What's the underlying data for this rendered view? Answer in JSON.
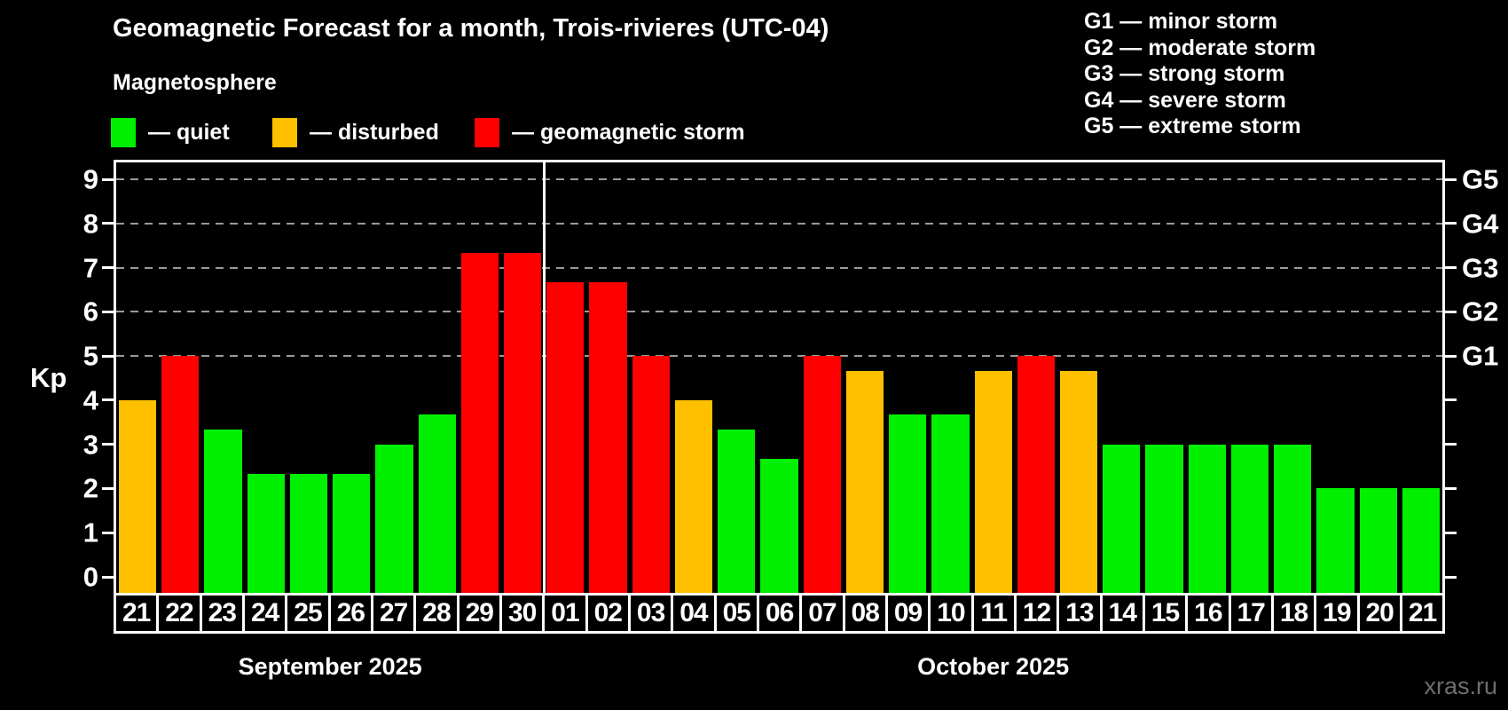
{
  "header": {
    "title": "Geomagnetic Forecast for a month, Trois-rivieres (UTC-04)",
    "subtitle": "Magnetosphere"
  },
  "legend": {
    "items": [
      {
        "key": "quiet",
        "label": "— quiet"
      },
      {
        "key": "disturbed",
        "label": "— disturbed"
      },
      {
        "key": "storm",
        "label": "— geomagnetic storm"
      }
    ]
  },
  "g_legend": {
    "lines": [
      "G1 — minor storm",
      "G2 — moderate storm",
      "G3 — strong storm",
      "G4 — severe storm",
      "G5 — extreme storm"
    ]
  },
  "chart_data": {
    "type": "bar",
    "title": "Geomagnetic Forecast for a month, Trois-rivieres (UTC-04)",
    "ylabel": "Kp",
    "ylim": [
      0,
      9.4
    ],
    "yticks": [
      0,
      1,
      2,
      3,
      4,
      5,
      6,
      7,
      8,
      9
    ],
    "grid": "dashed horizontal at storm levels only",
    "legend_position": "top-left",
    "colors": {
      "quiet": "#00f000",
      "disturbed": "#ffc000",
      "storm": "#ff0000"
    },
    "grid_color": "#9a9a9a",
    "grid_levels": [
      {
        "kp": 5,
        "label": "G1"
      },
      {
        "kp": 6,
        "label": "G2"
      },
      {
        "kp": 7,
        "label": "G3"
      },
      {
        "kp": 8,
        "label": "G4"
      },
      {
        "kp": 9,
        "label": "G5"
      }
    ],
    "months": [
      {
        "label": "September 2025",
        "days": 10
      },
      {
        "label": "October 2025",
        "days": 21
      }
    ],
    "bars": [
      {
        "day": "21",
        "kp": 4.0,
        "status": "disturbed"
      },
      {
        "day": "22",
        "kp": 5.0,
        "status": "storm"
      },
      {
        "day": "23",
        "kp": 3.33,
        "status": "quiet"
      },
      {
        "day": "24",
        "kp": 2.33,
        "status": "quiet"
      },
      {
        "day": "25",
        "kp": 2.33,
        "status": "quiet"
      },
      {
        "day": "26",
        "kp": 2.33,
        "status": "quiet"
      },
      {
        "day": "27",
        "kp": 3.0,
        "status": "quiet"
      },
      {
        "day": "28",
        "kp": 3.67,
        "status": "quiet"
      },
      {
        "day": "29",
        "kp": 7.33,
        "status": "storm"
      },
      {
        "day": "30",
        "kp": 7.33,
        "status": "storm"
      },
      {
        "day": "01",
        "kp": 6.67,
        "status": "storm"
      },
      {
        "day": "02",
        "kp": 6.67,
        "status": "storm"
      },
      {
        "day": "03",
        "kp": 5.0,
        "status": "storm"
      },
      {
        "day": "04",
        "kp": 4.0,
        "status": "disturbed"
      },
      {
        "day": "05",
        "kp": 3.33,
        "status": "quiet"
      },
      {
        "day": "06",
        "kp": 2.67,
        "status": "quiet"
      },
      {
        "day": "07",
        "kp": 5.0,
        "status": "storm"
      },
      {
        "day": "08",
        "kp": 4.67,
        "status": "disturbed"
      },
      {
        "day": "09",
        "kp": 3.67,
        "status": "quiet"
      },
      {
        "day": "10",
        "kp": 3.67,
        "status": "quiet"
      },
      {
        "day": "11",
        "kp": 4.67,
        "status": "disturbed"
      },
      {
        "day": "12",
        "kp": 5.0,
        "status": "storm"
      },
      {
        "day": "13",
        "kp": 4.67,
        "status": "disturbed"
      },
      {
        "day": "14",
        "kp": 3.0,
        "status": "quiet"
      },
      {
        "day": "15",
        "kp": 3.0,
        "status": "quiet"
      },
      {
        "day": "16",
        "kp": 3.0,
        "status": "quiet"
      },
      {
        "day": "17",
        "kp": 3.0,
        "status": "quiet"
      },
      {
        "day": "18",
        "kp": 3.0,
        "status": "quiet"
      },
      {
        "day": "19",
        "kp": 2.0,
        "status": "quiet"
      },
      {
        "day": "20",
        "kp": 2.0,
        "status": "quiet"
      },
      {
        "day": "21",
        "kp": 2.0,
        "status": "quiet"
      }
    ]
  },
  "watermark": "xras.ru"
}
